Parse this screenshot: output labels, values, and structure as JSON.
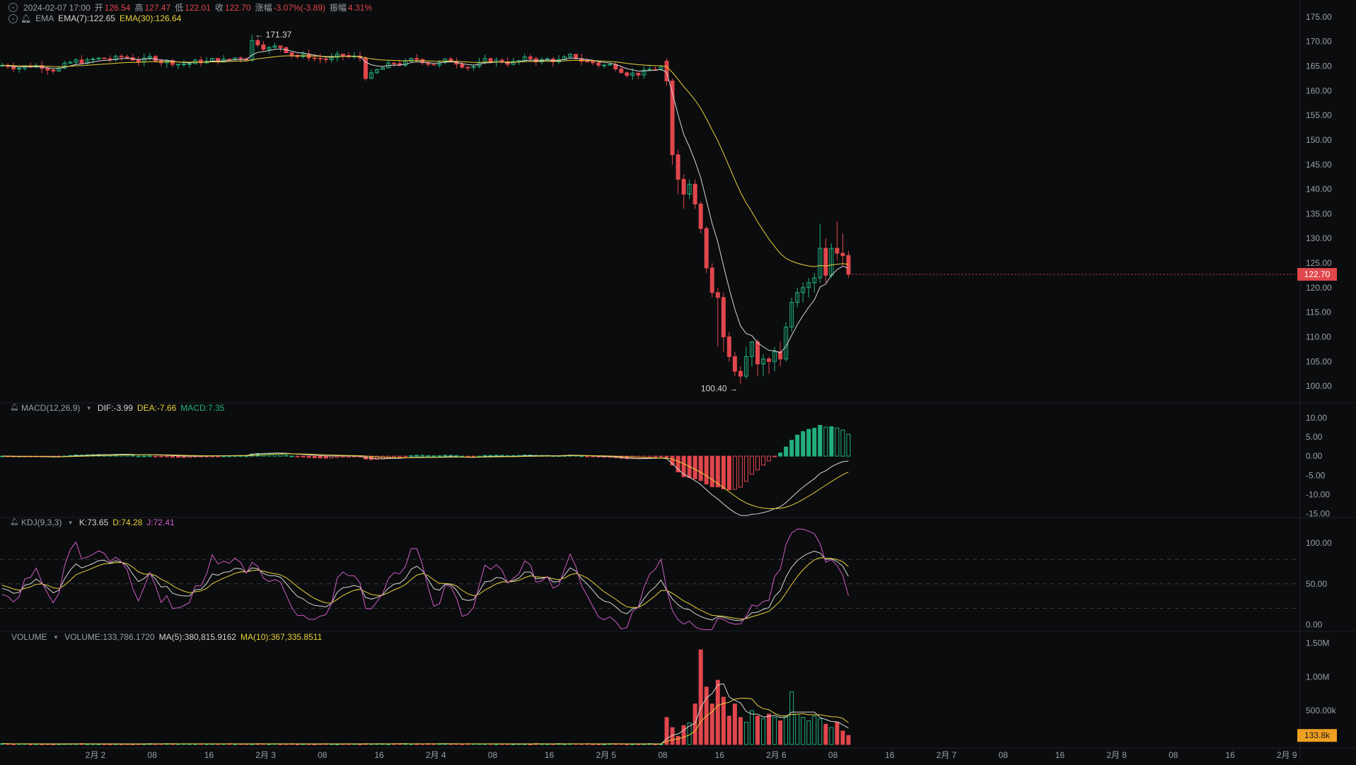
{
  "header": {
    "datetime": "2024-02-07 17:00",
    "open_label": "开",
    "open": "126.54",
    "high_label": "高",
    "high": "127.47",
    "low_label": "低",
    "low": "122.01",
    "close_label": "收",
    "close": "122.70",
    "change_label": "涨幅",
    "change": "-3.07%(-3.89)",
    "amplitude_label": "振幅",
    "amplitude": "4.31%"
  },
  "ema": {
    "name": "EMA",
    "ema7": "EMA(7):122.65",
    "ema30": "EMA(30):126.64"
  },
  "macd": {
    "name": "MACD(12,26,9)",
    "dif": "DIF:-3.99",
    "dea": "DEA:-7.66",
    "macd": "MACD:7.35"
  },
  "kdj": {
    "name": "KDJ(9,3,3)",
    "k": "K:73.65",
    "d": "D:74.28",
    "j": "J:72.41"
  },
  "volume": {
    "name": "VOLUME",
    "value": "VOLUME:133,786.1720",
    "ma5": "MA(5):380,815.9162",
    "ma10": "MA(10):367,335.8511"
  },
  "price_axis": {
    "ticks": [
      "175.00",
      "170.00",
      "165.00",
      "160.00",
      "155.00",
      "150.00",
      "145.00",
      "140.00",
      "135.00",
      "130.00",
      "125.00",
      "120.00",
      "115.00",
      "110.00",
      "105.00",
      "100.00"
    ],
    "tick_values": [
      175,
      170,
      165,
      160,
      155,
      150,
      145,
      140,
      135,
      130,
      125,
      120,
      115,
      110,
      105,
      100
    ],
    "current_price": "122.70"
  },
  "macd_axis": {
    "ticks": [
      "10.00",
      "5.00",
      "0.00",
      "-5.00",
      "-10.00",
      "-15.00"
    ],
    "tick_values": [
      10,
      5,
      0,
      -5,
      -10,
      -15
    ]
  },
  "kdj_axis": {
    "ticks": [
      "100.00",
      "50.00",
      "0.00"
    ],
    "tick_values": [
      100,
      50,
      0
    ]
  },
  "volume_axis": {
    "ticks": [
      "1.50M",
      "1.00M",
      "500.00k"
    ],
    "tick_values": [
      1500000,
      1000000,
      500000
    ],
    "current_volume": "133.8k"
  },
  "time_axis": {
    "labels": [
      "2月 2",
      "08",
      "16",
      "2月 3",
      "08",
      "16",
      "2月 4",
      "08",
      "16",
      "2月 5",
      "08",
      "16",
      "2月 6",
      "08",
      "16",
      "2月 7",
      "08",
      "16",
      "2月 8",
      "08",
      "16",
      "2月 9"
    ]
  },
  "annotations": {
    "high_marker": "171.37",
    "low_marker": "100.40"
  },
  "colors": {
    "up": "#22b07d",
    "down": "#e0474c",
    "ema7": "#d6d6d6",
    "ema30": "#e9d23a",
    "kdj_j": "#d05cc5",
    "axis_text": "#9aa0a6",
    "current_price_bg": "#e0474c",
    "current_volume_bg": "#f0a020"
  },
  "chart_data": {
    "type": "candlestick",
    "interval": "hourly",
    "x_range": [
      "2024-02-01 14:00",
      "2024-02-07 17:00"
    ],
    "price_ylim": [
      98,
      177
    ],
    "marked_high": 171.37,
    "marked_low": 100.4,
    "recent_candles": [
      {
        "t": "2024-02-06 16:00",
        "o": 166.0,
        "h": 166.6,
        "l": 161.0,
        "c": 162.0
      },
      {
        "t": "2024-02-06 17:00",
        "o": 162.0,
        "h": 162.5,
        "l": 145.0,
        "c": 147.0
      },
      {
        "t": "2024-02-06 18:00",
        "o": 147.0,
        "h": 148.0,
        "l": 139.0,
        "c": 142.0
      },
      {
        "t": "2024-02-06 19:00",
        "o": 142.0,
        "h": 143.0,
        "l": 136.0,
        "c": 139.0
      },
      {
        "t": "2024-02-06 20:00",
        "o": 139.0,
        "h": 142.0,
        "l": 138.0,
        "c": 141.0
      },
      {
        "t": "2024-02-06 21:00",
        "o": 141.0,
        "h": 142.0,
        "l": 136.0,
        "c": 137.0
      },
      {
        "t": "2024-02-06 22:00",
        "o": 137.0,
        "h": 137.5,
        "l": 131.0,
        "c": 132.0
      },
      {
        "t": "2024-02-06 23:00",
        "o": 132.0,
        "h": 132.5,
        "l": 123.0,
        "c": 124.0
      },
      {
        "t": "2024-02-07 00:00",
        "o": 124.0,
        "h": 125.0,
        "l": 118.0,
        "c": 119.0
      },
      {
        "t": "2024-02-07 01:00",
        "o": 119.0,
        "h": 120.0,
        "l": 108.0,
        "c": 118.0
      },
      {
        "t": "2024-02-07 02:00",
        "o": 118.0,
        "h": 119.0,
        "l": 107.0,
        "c": 110.0
      },
      {
        "t": "2024-02-07 03:00",
        "o": 110.0,
        "h": 111.0,
        "l": 105.0,
        "c": 106.0
      },
      {
        "t": "2024-02-07 04:00",
        "o": 106.0,
        "h": 107.0,
        "l": 102.0,
        "c": 103.0
      },
      {
        "t": "2024-02-07 05:00",
        "o": 103.0,
        "h": 104.0,
        "l": 100.4,
        "c": 102.0
      },
      {
        "t": "2024-02-07 06:00",
        "o": 102.0,
        "h": 108.0,
        "l": 101.5,
        "c": 106.0
      },
      {
        "t": "2024-02-07 07:00",
        "o": 106.0,
        "h": 109.0,
        "l": 104.0,
        "c": 109.0
      },
      {
        "t": "2024-02-07 08:00",
        "o": 109.0,
        "h": 109.5,
        "l": 102.0,
        "c": 104.5
      },
      {
        "t": "2024-02-07 09:00",
        "o": 104.5,
        "h": 106.5,
        "l": 102.0,
        "c": 105.5
      },
      {
        "t": "2024-02-07 10:00",
        "o": 105.5,
        "h": 106.0,
        "l": 102.5,
        "c": 105.0
      },
      {
        "t": "2024-02-07 11:00",
        "o": 105.0,
        "h": 108.0,
        "l": 103.0,
        "c": 107.0
      },
      {
        "t": "2024-02-07 12:00",
        "o": 107.0,
        "h": 109.0,
        "l": 104.0,
        "c": 105.5
      },
      {
        "t": "2024-02-07 13:00",
        "o": 105.5,
        "h": 113.0,
        "l": 105.0,
        "c": 112.0
      },
      {
        "t": "2024-02-07 14:00",
        "o": 112.0,
        "h": 118.0,
        "l": 111.0,
        "c": 117.0
      },
      {
        "t": "2024-02-07 15:00",
        "o": 117.0,
        "h": 120.0,
        "l": 116.0,
        "c": 119.0
      },
      {
        "t": "2024-02-07 16:00",
        "o": 119.0,
        "h": 121.0,
        "l": 117.0,
        "c": 120.0
      },
      {
        "t": "2024-02-07 17:00",
        "o": 120.0,
        "h": 122.0,
        "l": 118.0,
        "c": 121.0
      },
      {
        "t": "2024-02-07 18:00",
        "o": 121.0,
        "h": 123.0,
        "l": 119.0,
        "c": 122.0
      },
      {
        "t": "2024-02-07 19:00",
        "o": 122.0,
        "h": 133.0,
        "l": 121.0,
        "c": 128.0
      },
      {
        "t": "2024-02-07 20:00",
        "o": 128.0,
        "h": 130.0,
        "l": 121.0,
        "c": 122.5
      },
      {
        "t": "2024-02-07 21:00",
        "o": 122.5,
        "h": 129.0,
        "l": 122.0,
        "c": 128.0
      },
      {
        "t": "2024-02-07 22:00",
        "o": 128.0,
        "h": 133.5,
        "l": 125.5,
        "c": 127.0
      },
      {
        "t": "2024-02-07 23:00",
        "o": 127.0,
        "h": 131.0,
        "l": 124.5,
        "c": 126.5
      },
      {
        "t": "2024-02-08 00:00",
        "o": 126.54,
        "h": 127.47,
        "l": 122.01,
        "c": 122.7
      }
    ],
    "volume_peak": 1400000,
    "macd_ylim": [
      -16,
      12
    ],
    "kdj_ylim": [
      -10,
      120
    ],
    "volume_ylim": [
      0,
      1600000
    ]
  }
}
